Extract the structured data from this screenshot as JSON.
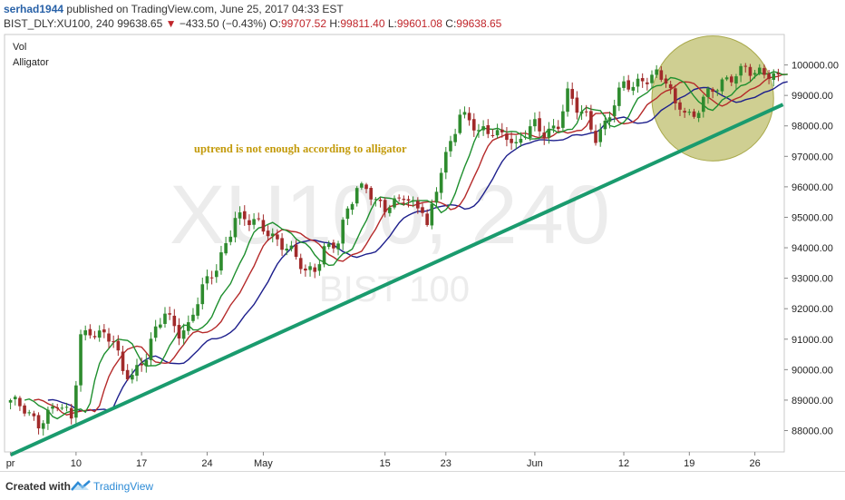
{
  "header": {
    "author": "serhad1944",
    "published_text": "published on TradingView.com, June 25, 2017 04:33 EST",
    "symbol_line": "BIST_DLY:XU100, 240",
    "last_price": "99638.65",
    "change_arrow": "▼",
    "change": "−433.50 (−0.43%)",
    "o_label": "O:",
    "o_value": "99707.52",
    "h_label": "H:",
    "h_value": "99811.40",
    "l_label": "L:",
    "l_value": "99601.08",
    "c_label": "C:",
    "c_value": "99638.65"
  },
  "footer": {
    "created_with": "Created with",
    "brand": "TradingView"
  },
  "chart_data": {
    "type": "candlestick",
    "indicators": [
      "Vol",
      "Alligator"
    ],
    "watermark_symbol": "XU100, 240",
    "watermark_name": "BIST 100",
    "annotation": "uptrend is not enough according to alligator",
    "y_ticks": [
      "100000.00",
      "99000.00",
      "98000.00",
      "97000.00",
      "96000.00",
      "95000.00",
      "94000.00",
      "93000.00",
      "92000.00",
      "91000.00",
      "90000.00",
      "89000.00",
      "88000.00"
    ],
    "ylim": [
      87300,
      101000
    ],
    "x_ticks": [
      {
        "label": "pr",
        "i": 0
      },
      {
        "label": "10",
        "i": 14
      },
      {
        "label": "17",
        "i": 28
      },
      {
        "label": "24",
        "i": 42
      },
      {
        "label": "May",
        "i": 54
      },
      {
        "label": "15",
        "i": 80
      },
      {
        "label": "23",
        "i": 93
      },
      {
        "label": "Jun",
        "i": 112
      },
      {
        "label": "12",
        "i": 131
      },
      {
        "label": "19",
        "i": 145
      },
      {
        "label": "26",
        "i": 159
      }
    ],
    "bar_count": 165,
    "anchors": [
      [
        0,
        88900
      ],
      [
        3,
        88700
      ],
      [
        6,
        88300
      ],
      [
        10,
        88800
      ],
      [
        13,
        88400
      ],
      [
        14,
        89700
      ],
      [
        15,
        91200
      ],
      [
        17,
        91300
      ],
      [
        19,
        91100
      ],
      [
        22,
        90900
      ],
      [
        24,
        90000
      ],
      [
        26,
        89900
      ],
      [
        29,
        90400
      ],
      [
        31,
        91200
      ],
      [
        33,
        91900
      ],
      [
        36,
        91300
      ],
      [
        38,
        91400
      ],
      [
        41,
        92600
      ],
      [
        44,
        93400
      ],
      [
        46,
        94200
      ],
      [
        48,
        95000
      ],
      [
        51,
        94800
      ],
      [
        53,
        94800
      ],
      [
        55,
        94600
      ],
      [
        58,
        94100
      ],
      [
        60,
        93800
      ],
      [
        63,
        93200
      ],
      [
        65,
        93400
      ],
      [
        67,
        94000
      ],
      [
        70,
        94100
      ],
      [
        72,
        95200
      ],
      [
        74,
        96000
      ],
      [
        76,
        96100
      ],
      [
        78,
        95500
      ],
      [
        80,
        95200
      ],
      [
        82,
        95400
      ],
      [
        84,
        95800
      ],
      [
        86,
        95500
      ],
      [
        88,
        95300
      ],
      [
        89,
        94600
      ],
      [
        90,
        95200
      ],
      [
        92,
        96500
      ],
      [
        94,
        97500
      ],
      [
        96,
        98500
      ],
      [
        98,
        98200
      ],
      [
        100,
        97700
      ],
      [
        103,
        97800
      ],
      [
        106,
        97800
      ],
      [
        108,
        97300
      ],
      [
        110,
        97700
      ],
      [
        112,
        98000
      ],
      [
        114,
        97800
      ],
      [
        117,
        98100
      ],
      [
        119,
        99000
      ],
      [
        121,
        98500
      ],
      [
        123,
        98300
      ],
      [
        125,
        97700
      ],
      [
        127,
        98100
      ],
      [
        129,
        98700
      ],
      [
        131,
        99300
      ],
      [
        133,
        99300
      ],
      [
        135,
        99600
      ],
      [
        138,
        99700
      ],
      [
        140,
        99400
      ],
      [
        142,
        98600
      ],
      [
        143,
        98700
      ],
      [
        145,
        98400
      ],
      [
        146,
        98400
      ],
      [
        148,
        98900
      ],
      [
        151,
        99200
      ],
      [
        153,
        99500
      ],
      [
        155,
        99800
      ],
      [
        156,
        99900
      ],
      [
        157,
        100000
      ],
      [
        158,
        99800
      ],
      [
        159,
        99639
      ]
    ],
    "trend_line": {
      "from": [
        0,
        87200
      ],
      "to": [
        165,
        98700
      ]
    },
    "highlight_ellipse": {
      "center": [
        150,
        98900
      ],
      "rx": 13,
      "ry": 2050
    },
    "series": [
      {
        "name": "Jaw",
        "color": "#1d1f8c",
        "smoothing": 13,
        "shift": 8
      },
      {
        "name": "Teeth",
        "color": "#b52a2a",
        "smoothing": 8,
        "shift": 5
      },
      {
        "name": "Lips",
        "color": "#1e8f2e",
        "smoothing": 5,
        "shift": 3
      }
    ],
    "colors": {
      "up": "#2e8b2e",
      "down": "#a12a2a",
      "trend": "#1a9b6e",
      "ellipse_fill": "#bfbf6e",
      "ellipse_stroke": "#a9a94b",
      "annotation": "#c39a0a"
    }
  }
}
